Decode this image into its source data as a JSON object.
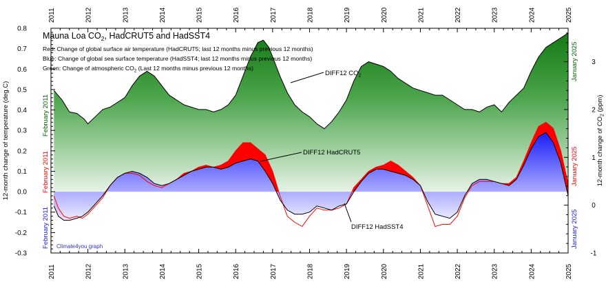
{
  "chart_data": {
    "type": "area",
    "title": "Mauna Loa CO",
    "title_sub": "2",
    "title_rest": ", HadCRUT5 and HadSST4",
    "legend_lines": [
      {
        "text": "Red: Change of global surface air temperature (HadCRUT5; last 12 months minus previous 12 months)"
      },
      {
        "text": "Blue: Change of global sea surface temperature (HadSST4; last 12 months minus previous 12 months)"
      },
      {
        "text": "Green: Change of atmospheric CO",
        "sub": "2",
        "rest": " (Last 12 months minus previous 12 months)"
      }
    ],
    "credit": "Climate4you graph",
    "ylabel_left": "12-month change of temperature (deg.C)",
    "ylabel_right": "12-month change of CO",
    "ylabel_right_sub": "2",
    "ylabel_right_rest": " (ppm)",
    "x_ticks": [
      "2011",
      "2012",
      "2013",
      "2014",
      "2015",
      "2016",
      "2017",
      "2018",
      "2019",
      "2020",
      "2021",
      "2022",
      "2023",
      "2024",
      "2025"
    ],
    "xlim": [
      2011,
      2025
    ],
    "ylim_left": [
      -0.3,
      0.8
    ],
    "yticks_left": [
      "-0.3",
      "-0.2",
      "-0.1",
      "0.0",
      "0.1",
      "0.2",
      "0.3",
      "0.4",
      "0.5",
      "0.6",
      "0.7",
      "0.8"
    ],
    "ylim_right": [
      -1,
      3.7
    ],
    "yticks_right": [
      "-1",
      "0",
      "1",
      "2",
      "3"
    ],
    "side_labels": {
      "left_green": "February 2011",
      "left_red": "February 2011",
      "left_blue": "February 2011",
      "right_green": "January 2025",
      "right_red": "January 2025",
      "right_blue": "January 2025"
    },
    "annotations": {
      "co2": {
        "text": "DIFF12 CO",
        "sub": "2"
      },
      "hadcrut": {
        "text": "DIFF12 HadCRUT5"
      },
      "hadsst": {
        "text": "DIFF12 HadSST4"
      }
    },
    "colors": {
      "co2": "#1e8a1e",
      "hadcrut": "#ff0000",
      "hadsst": "#1a1aff",
      "text_green": "#006400"
    },
    "series": [
      {
        "name": "DIFF12 CO2",
        "axis": "right",
        "x": [
          2011.08,
          2011.3,
          2011.5,
          2011.7,
          2011.9,
          2012.0,
          2012.2,
          2012.4,
          2012.6,
          2012.8,
          2013.0,
          2013.2,
          2013.4,
          2013.6,
          2013.8,
          2014.0,
          2014.2,
          2014.4,
          2014.6,
          2014.8,
          2015.0,
          2015.2,
          2015.4,
          2015.6,
          2015.8,
          2016.0,
          2016.2,
          2016.4,
          2016.6,
          2016.75,
          2016.9,
          2017.0,
          2017.2,
          2017.4,
          2017.6,
          2017.8,
          2018.0,
          2018.2,
          2018.4,
          2018.6,
          2018.8,
          2019.0,
          2019.2,
          2019.4,
          2019.6,
          2019.8,
          2020.0,
          2020.2,
          2020.4,
          2020.6,
          2020.8,
          2021.0,
          2021.2,
          2021.4,
          2021.6,
          2021.8,
          2022.0,
          2022.2,
          2022.4,
          2022.6,
          2022.8,
          2023.0,
          2023.2,
          2023.4,
          2023.6,
          2023.8,
          2024.0,
          2024.2,
          2024.4,
          2024.6,
          2024.8,
          2025.0
        ],
        "y": [
          2.4,
          2.2,
          1.95,
          1.92,
          1.8,
          1.7,
          1.85,
          2.0,
          2.05,
          2.15,
          2.25,
          2.5,
          2.7,
          2.8,
          2.7,
          2.5,
          2.3,
          2.2,
          2.1,
          2.05,
          2.0,
          2.0,
          1.95,
          2.0,
          2.1,
          2.3,
          2.7,
          3.1,
          3.4,
          3.45,
          3.3,
          3.1,
          2.7,
          2.35,
          2.1,
          1.95,
          1.85,
          1.7,
          1.6,
          1.75,
          1.95,
          2.2,
          2.6,
          2.9,
          3.0,
          2.95,
          2.9,
          2.8,
          2.65,
          2.55,
          2.45,
          2.4,
          2.35,
          2.3,
          2.3,
          2.2,
          2.1,
          2.0,
          2.0,
          1.95,
          2.05,
          2.1,
          1.95,
          2.15,
          2.3,
          2.45,
          2.8,
          3.1,
          3.3,
          3.4,
          3.5,
          3.6
        ]
      },
      {
        "name": "DIFF12 HadCRUT5",
        "axis": "left",
        "x": [
          2011.08,
          2011.2,
          2011.35,
          2011.5,
          2011.7,
          2011.85,
          2012.0,
          2012.2,
          2012.4,
          2012.6,
          2012.8,
          2013.0,
          2013.2,
          2013.4,
          2013.6,
          2013.8,
          2014.0,
          2014.2,
          2014.4,
          2014.6,
          2014.8,
          2015.0,
          2015.2,
          2015.4,
          2015.6,
          2015.8,
          2016.0,
          2016.2,
          2016.4,
          2016.6,
          2016.8,
          2017.0,
          2017.2,
          2017.4,
          2017.6,
          2017.8,
          2018.0,
          2018.2,
          2018.4,
          2018.6,
          2018.8,
          2019.0,
          2019.2,
          2019.4,
          2019.6,
          2019.8,
          2020.0,
          2020.2,
          2020.4,
          2020.6,
          2020.8,
          2021.0,
          2021.2,
          2021.4,
          2021.6,
          2021.8,
          2022.0,
          2022.2,
          2022.4,
          2022.6,
          2022.8,
          2023.0,
          2023.2,
          2023.4,
          2023.6,
          2023.8,
          2024.0,
          2024.2,
          2024.4,
          2024.6,
          2024.8,
          2025.0
        ],
        "y": [
          -0.02,
          -0.08,
          -0.12,
          -0.13,
          -0.12,
          -0.13,
          -0.11,
          -0.07,
          -0.03,
          0.03,
          0.07,
          0.09,
          0.09,
          0.08,
          0.05,
          0.03,
          0.02,
          0.04,
          0.06,
          0.09,
          0.1,
          0.12,
          0.13,
          0.12,
          0.13,
          0.15,
          0.2,
          0.24,
          0.24,
          0.21,
          0.18,
          0.1,
          -0.02,
          -0.12,
          -0.15,
          -0.17,
          -0.12,
          -0.08,
          -0.09,
          -0.09,
          -0.08,
          -0.06,
          0.02,
          0.06,
          0.1,
          0.12,
          0.13,
          0.15,
          0.13,
          0.1,
          0.07,
          0.03,
          -0.07,
          -0.17,
          -0.16,
          -0.16,
          -0.12,
          -0.03,
          0.03,
          0.05,
          0.05,
          0.05,
          0.04,
          0.04,
          0.07,
          0.15,
          0.24,
          0.32,
          0.34,
          0.31,
          0.2,
          0.04
        ]
      },
      {
        "name": "DIFF12 HadSST4",
        "axis": "left",
        "x": [
          2011.08,
          2011.2,
          2011.35,
          2011.5,
          2011.7,
          2011.85,
          2012.0,
          2012.2,
          2012.4,
          2012.6,
          2012.8,
          2013.0,
          2013.2,
          2013.4,
          2013.6,
          2013.8,
          2014.0,
          2014.2,
          2014.4,
          2014.6,
          2014.8,
          2015.0,
          2015.2,
          2015.4,
          2015.6,
          2015.8,
          2016.0,
          2016.2,
          2016.4,
          2016.6,
          2016.8,
          2017.0,
          2017.2,
          2017.4,
          2017.6,
          2017.8,
          2018.0,
          2018.2,
          2018.4,
          2018.6,
          2018.8,
          2019.0,
          2019.2,
          2019.4,
          2019.6,
          2019.8,
          2020.0,
          2020.2,
          2020.4,
          2020.6,
          2020.8,
          2021.0,
          2021.2,
          2021.4,
          2021.6,
          2021.8,
          2022.0,
          2022.2,
          2022.4,
          2022.6,
          2022.8,
          2023.0,
          2023.2,
          2023.4,
          2023.6,
          2023.8,
          2024.0,
          2024.2,
          2024.4,
          2024.6,
          2024.8,
          2025.0
        ],
        "y": [
          -0.07,
          -0.12,
          -0.14,
          -0.14,
          -0.13,
          -0.12,
          -0.1,
          -0.06,
          -0.02,
          0.03,
          0.07,
          0.09,
          0.1,
          0.09,
          0.07,
          0.04,
          0.03,
          0.04,
          0.06,
          0.08,
          0.1,
          0.11,
          0.12,
          0.12,
          0.11,
          0.12,
          0.14,
          0.15,
          0.16,
          0.15,
          0.1,
          0.04,
          -0.04,
          -0.09,
          -0.11,
          -0.11,
          -0.1,
          -0.07,
          -0.08,
          -0.09,
          -0.07,
          -0.06,
          0.0,
          0.05,
          0.09,
          0.11,
          0.11,
          0.1,
          0.09,
          0.08,
          0.06,
          0.03,
          -0.05,
          -0.11,
          -0.12,
          -0.13,
          -0.1,
          -0.02,
          0.04,
          0.06,
          0.06,
          0.05,
          0.04,
          0.03,
          0.06,
          0.13,
          0.21,
          0.27,
          0.29,
          0.24,
          0.14,
          -0.02
        ]
      }
    ]
  }
}
